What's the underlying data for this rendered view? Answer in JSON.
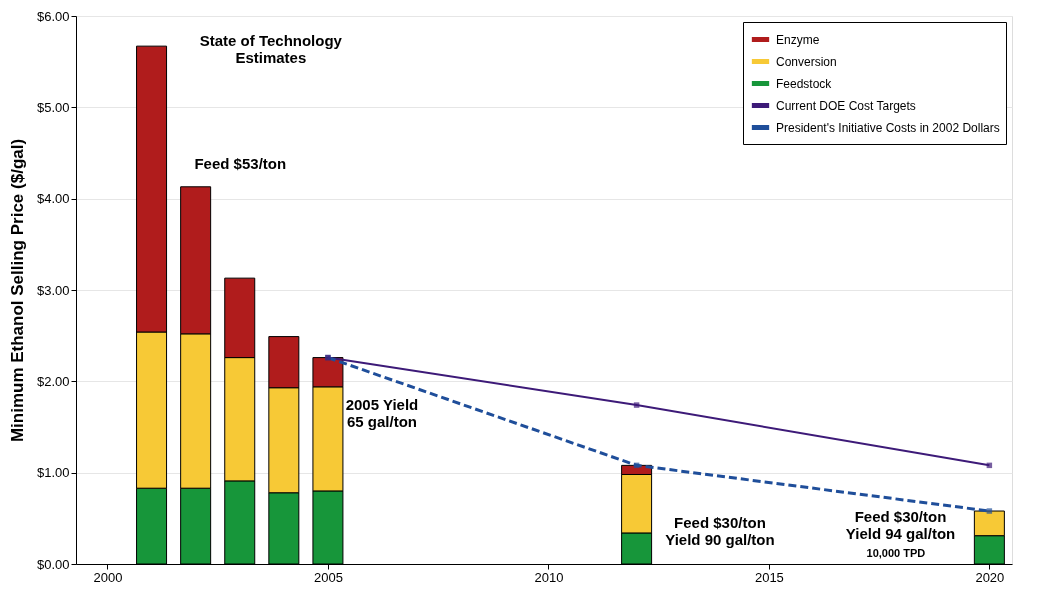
{
  "chart_data": {
    "type": "bar",
    "stacked": true,
    "ylabel": "Minimum Ethanol Selling Price ($/gal)",
    "x": [
      2001,
      2002,
      2003,
      2004,
      2005,
      2012,
      2020
    ],
    "series": [
      {
        "name": "Feedstock",
        "color": "#17963a",
        "values": [
          0.83,
          0.83,
          0.91,
          0.78,
          0.8,
          0.34,
          0.31
        ]
      },
      {
        "name": "Conversion",
        "color": "#f7c936",
        "values": [
          1.71,
          1.69,
          1.35,
          1.15,
          1.14,
          0.64,
          0.27
        ]
      },
      {
        "name": "Enzyme",
        "color": "#b01c1c",
        "values": [
          3.13,
          1.61,
          0.87,
          0.56,
          0.32,
          0.1,
          null
        ]
      },
      {
        "name": "Current DOE Cost Targets",
        "type": "line",
        "color": "#3d1a78",
        "line_style": "solid",
        "marker": "square",
        "x": [
          2005,
          2012,
          2020
        ],
        "values": [
          2.26,
          1.74,
          1.08
        ]
      },
      {
        "name": "President's Initiative Costs in 2002 Dollars",
        "type": "line",
        "color": "#1f4e9a",
        "line_style": "dashed",
        "marker": "square",
        "x": [
          2005,
          2012,
          2020
        ],
        "values": [
          2.26,
          1.08,
          0.58
        ]
      }
    ],
    "xlim": [
      1999.4,
      2020.4
    ],
    "xticks": [
      2000,
      2005,
      2010,
      2015,
      2020
    ],
    "ylim": [
      0,
      6
    ],
    "yticks": [
      {
        "value": 0,
        "label": "$0.00"
      },
      {
        "value": 1,
        "label": "$1.00"
      },
      {
        "value": 2,
        "label": "$2.00"
      },
      {
        "value": 3,
        "label": "$3.00"
      },
      {
        "value": 4,
        "label": "$4.00"
      },
      {
        "value": 5,
        "label": "$5.00"
      },
      {
        "value": 6,
        "label": "$6.00"
      }
    ],
    "grid": "y",
    "legend": "top right",
    "annotations": [
      "State of Technology\nEstimates",
      "Feed $53/ton",
      "2005 Yield\n65 gal/ton",
      "Feed $30/ton\nYield 90 gal/ton",
      "Feed $30/ton\nYield 94 gal/ton",
      "10,000 TPD"
    ]
  }
}
